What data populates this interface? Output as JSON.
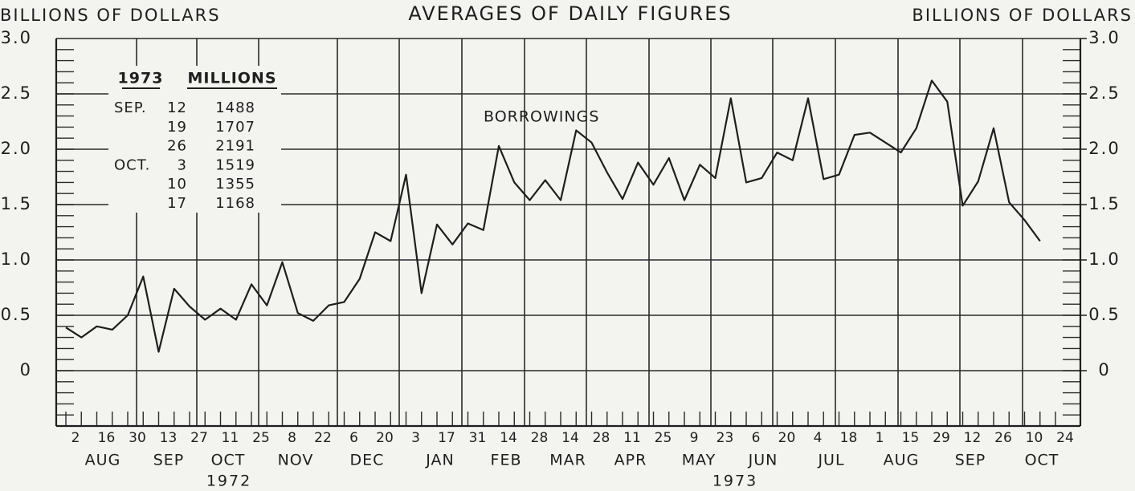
{
  "chart_data": {
    "type": "line",
    "title": "AVERAGES OF DAILY FIGURES",
    "y_label": "BILLIONS OF DOLLARS",
    "y2_label": "BILLIONS OF DOLLARS",
    "categories": [
      "2",
      null,
      "16",
      null,
      "30",
      null,
      "13",
      null,
      "27",
      null,
      "11",
      null,
      "25",
      null,
      "8",
      null,
      "22",
      null,
      "6",
      null,
      "20",
      null,
      "3",
      null,
      "17",
      null,
      "31",
      null,
      "14",
      null,
      "28",
      null,
      "14",
      null,
      "28",
      null,
      "11",
      null,
      "25",
      null,
      "9",
      null,
      "23",
      null,
      "6",
      null,
      "20",
      null,
      "4",
      null,
      "18",
      null,
      "1",
      null,
      "15",
      null,
      "29",
      null,
      "12",
      null,
      "26",
      null,
      "10",
      null,
      "24"
    ],
    "months": [
      "AUG",
      "SEP",
      "OCT",
      "NOV",
      "DEC",
      "JAN",
      "FEB",
      "MAR",
      "APR",
      "MAY",
      "JUN",
      "JUL",
      "AUG",
      "SEP",
      "OCT"
    ],
    "years": [
      "1972",
      "1973"
    ],
    "series": [
      {
        "name": "BORROWINGS",
        "color": "#1e1e1e",
        "values": [
          0.39,
          0.3,
          0.4,
          0.37,
          0.5,
          0.85,
          0.17,
          0.74,
          0.58,
          0.46,
          0.56,
          0.46,
          0.78,
          0.59,
          0.98,
          0.52,
          0.45,
          0.59,
          0.62,
          0.83,
          1.25,
          1.17,
          1.77,
          0.7,
          1.32,
          1.14,
          1.33,
          1.27,
          2.03,
          1.7,
          1.54,
          1.72,
          1.54,
          2.17,
          2.06,
          1.79,
          1.55,
          1.88,
          1.68,
          1.92,
          1.54,
          1.86,
          1.74,
          2.46,
          1.7,
          1.74,
          1.97,
          1.9,
          2.46,
          1.73,
          1.77,
          2.13,
          2.15,
          2.06,
          1.97,
          2.19,
          2.62,
          2.43,
          1.49,
          1.71,
          2.19,
          1.52,
          1.36,
          1.17,
          null
        ]
      }
    ],
    "ylim": [
      -0.5,
      3.0
    ],
    "yticks": [
      0,
      0.5,
      {
        "value": 1,
        "label": "1.0"
      },
      1.5,
      {
        "value": 2,
        "label": "2.0"
      },
      2.5,
      {
        "value": 3,
        "label": "3.0"
      }
    ],
    "y2lim": [
      -0.5,
      3.0
    ],
    "y2ticks": [
      0,
      0.5,
      {
        "value": 1,
        "label": "1.0"
      },
      1.5,
      {
        "value": 2,
        "label": "2.0"
      },
      2.5,
      {
        "value": 3,
        "label": "3.0"
      }
    ],
    "grid": true,
    "inset": {
      "header": [
        "1973",
        "MILLIONS"
      ],
      "rows": [
        {
          "month": "SEP.",
          "day": "12",
          "value": 1488
        },
        {
          "day": "19",
          "value": 1707
        },
        {
          "day": "26",
          "value": 2191
        },
        {
          "month": "OCT.",
          "day": "3",
          "value": 1519
        },
        {
          "day": "10",
          "value": 1355
        },
        {
          "day": "17",
          "value": 1168
        }
      ]
    }
  }
}
